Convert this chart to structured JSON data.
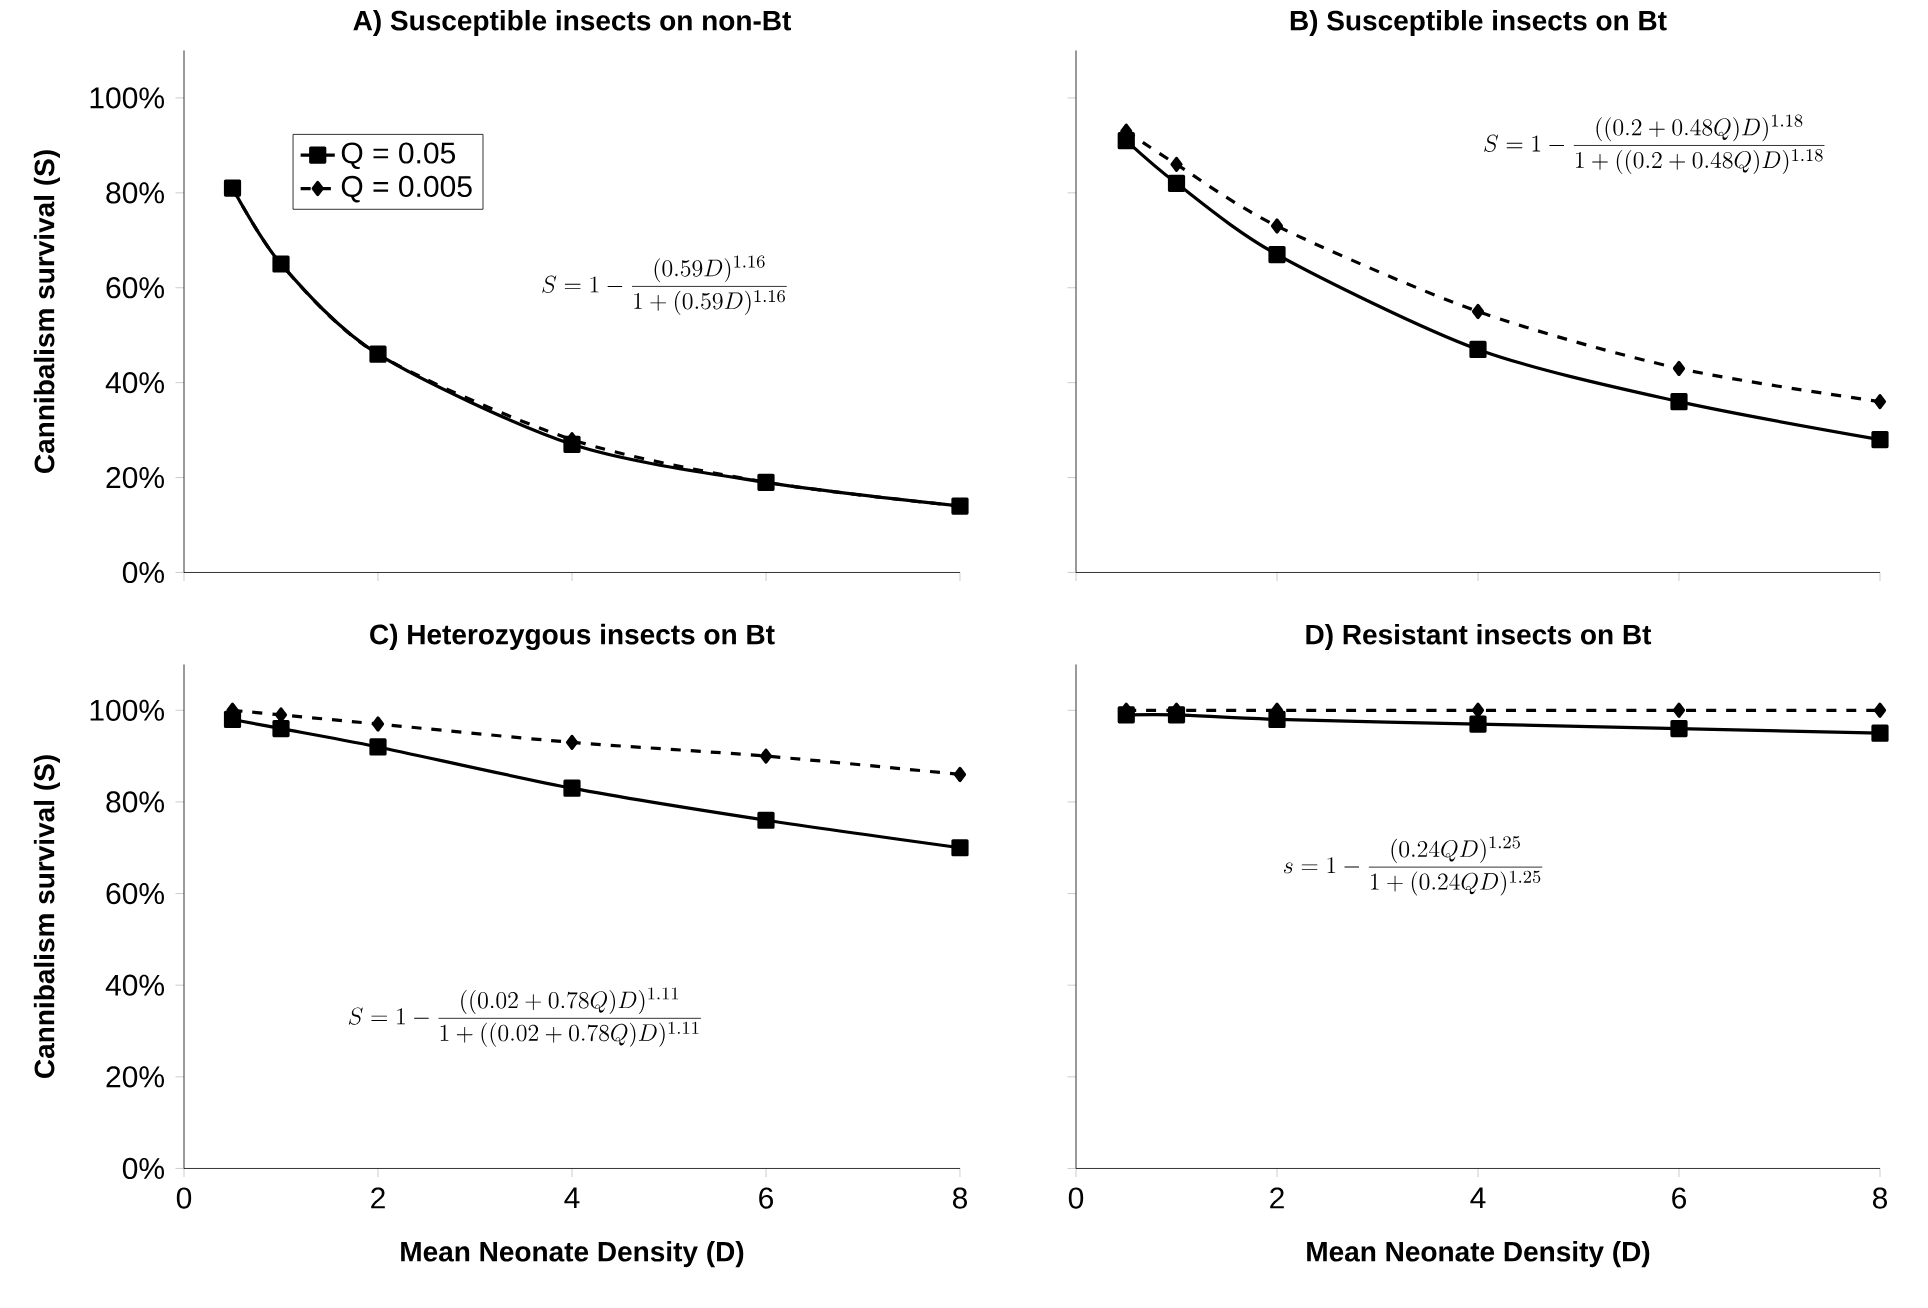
{
  "chart_data": [
    {
      "type": "line",
      "title": "A) Susceptible insects on non-Bt",
      "ylabel": "Cannibalism survival (S)",
      "x": [
        0.5,
        1,
        2,
        4,
        6,
        8
      ],
      "xlim": [
        0,
        8
      ],
      "xticks": [
        0,
        2,
        4,
        6,
        8
      ],
      "ylim": [
        0,
        110
      ],
      "yticks": [
        {
          "value": 0,
          "label": "0%"
        },
        {
          "value": 20,
          "label": "20%"
        },
        {
          "value": 40,
          "label": "40%"
        },
        {
          "value": 60,
          "label": "60%"
        },
        {
          "value": 80,
          "label": "80%"
        },
        {
          "value": 100,
          "label": "100%"
        }
      ],
      "tick_labels": "y",
      "legend": "top left",
      "series": [
        {
          "name": "Q = 0.05",
          "color": "#000000",
          "marker": "square",
          "line_style": "solid",
          "values": [
            81,
            65,
            46,
            27,
            19,
            14
          ]
        },
        {
          "name": "Q = 0.005",
          "color": "#000000",
          "marker": "diamond",
          "line_style": "dashed",
          "values": [
            81,
            65,
            46,
            28,
            19,
            14
          ]
        }
      ],
      "annotations": [
        "S = 1 - \\frac{(0.59D)^{1.16}}{1 + (0.59D)^{1.16}}"
      ]
    },
    {
      "type": "line",
      "title": "B) Susceptible insects on Bt",
      "x": [
        0.5,
        1,
        2,
        4,
        6,
        8
      ],
      "xlim": [
        0,
        8
      ],
      "xticks": [
        0,
        2,
        4,
        6,
        8
      ],
      "ylim": [
        0,
        110
      ],
      "yticks": [
        0,
        20,
        40,
        60,
        80,
        100
      ],
      "tick_labels": false,
      "series": [
        {
          "color": "#000000",
          "marker": "square",
          "line_style": "solid",
          "values": [
            91,
            82,
            67,
            47,
            36,
            28
          ]
        },
        {
          "color": "#000000",
          "marker": "diamond",
          "line_style": "dashed",
          "values": [
            93,
            86,
            73,
            55,
            43,
            36
          ]
        }
      ],
      "annotations": [
        "S = 1 - \\frac{((0.2 + 0.48Q)D)^{1.18}}{1 + ((0.2 + 0.48Q)D)^{1.18}}"
      ]
    },
    {
      "type": "line",
      "title": "C) Heterozygous insects on Bt",
      "xlabel": "Mean Neonate Density (D)",
      "ylabel": "Cannibalism survival (S)",
      "x": [
        0.5,
        1,
        2,
        4,
        6,
        8
      ],
      "xlim": [
        0,
        8
      ],
      "xticks": [
        0,
        2,
        4,
        6,
        8
      ],
      "ylim": [
        0,
        110
      ],
      "yticks": [
        {
          "value": 0,
          "label": "0%"
        },
        {
          "value": 20,
          "label": "20%"
        },
        {
          "value": 40,
          "label": "40%"
        },
        {
          "value": 60,
          "label": "60%"
        },
        {
          "value": 80,
          "label": "80%"
        },
        {
          "value": 100,
          "label": "100%"
        }
      ],
      "series": [
        {
          "color": "#000000",
          "marker": "square",
          "line_style": "solid",
          "values": [
            98,
            96,
            92,
            83,
            76,
            70
          ]
        },
        {
          "color": "#000000",
          "marker": "diamond",
          "line_style": "dashed",
          "values": [
            100,
            99,
            97,
            93,
            90,
            86
          ]
        }
      ],
      "annotations": [
        "S = 1 - \\frac{((0.02 + 0.78Q)D)^{1.11}}{1 + ((0.02 + 0.78Q)D)^{1.11}}"
      ]
    },
    {
      "type": "line",
      "title": "D) Resistant insects on Bt",
      "xlabel": "Mean Neonate Density (D)",
      "x": [
        0.5,
        1,
        2,
        4,
        6,
        8
      ],
      "xlim": [
        0,
        8
      ],
      "xticks": [
        0,
        2,
        4,
        6,
        8
      ],
      "ylim": [
        0,
        110
      ],
      "yticks": [
        0,
        20,
        40,
        60,
        80,
        100
      ],
      "tick_labels": "x",
      "series": [
        {
          "color": "#000000",
          "marker": "square",
          "line_style": "solid",
          "values": [
            99,
            99,
            98,
            97,
            96,
            95
          ]
        },
        {
          "color": "#000000",
          "marker": "diamond",
          "line_style": "dashed",
          "values": [
            100,
            100,
            100,
            100,
            100,
            100
          ]
        }
      ],
      "annotations": [
        "s = 1 - \\frac{(0.24QD)^{1.25}}{1 + (0.24QD)^{1.25}}"
      ]
    }
  ]
}
